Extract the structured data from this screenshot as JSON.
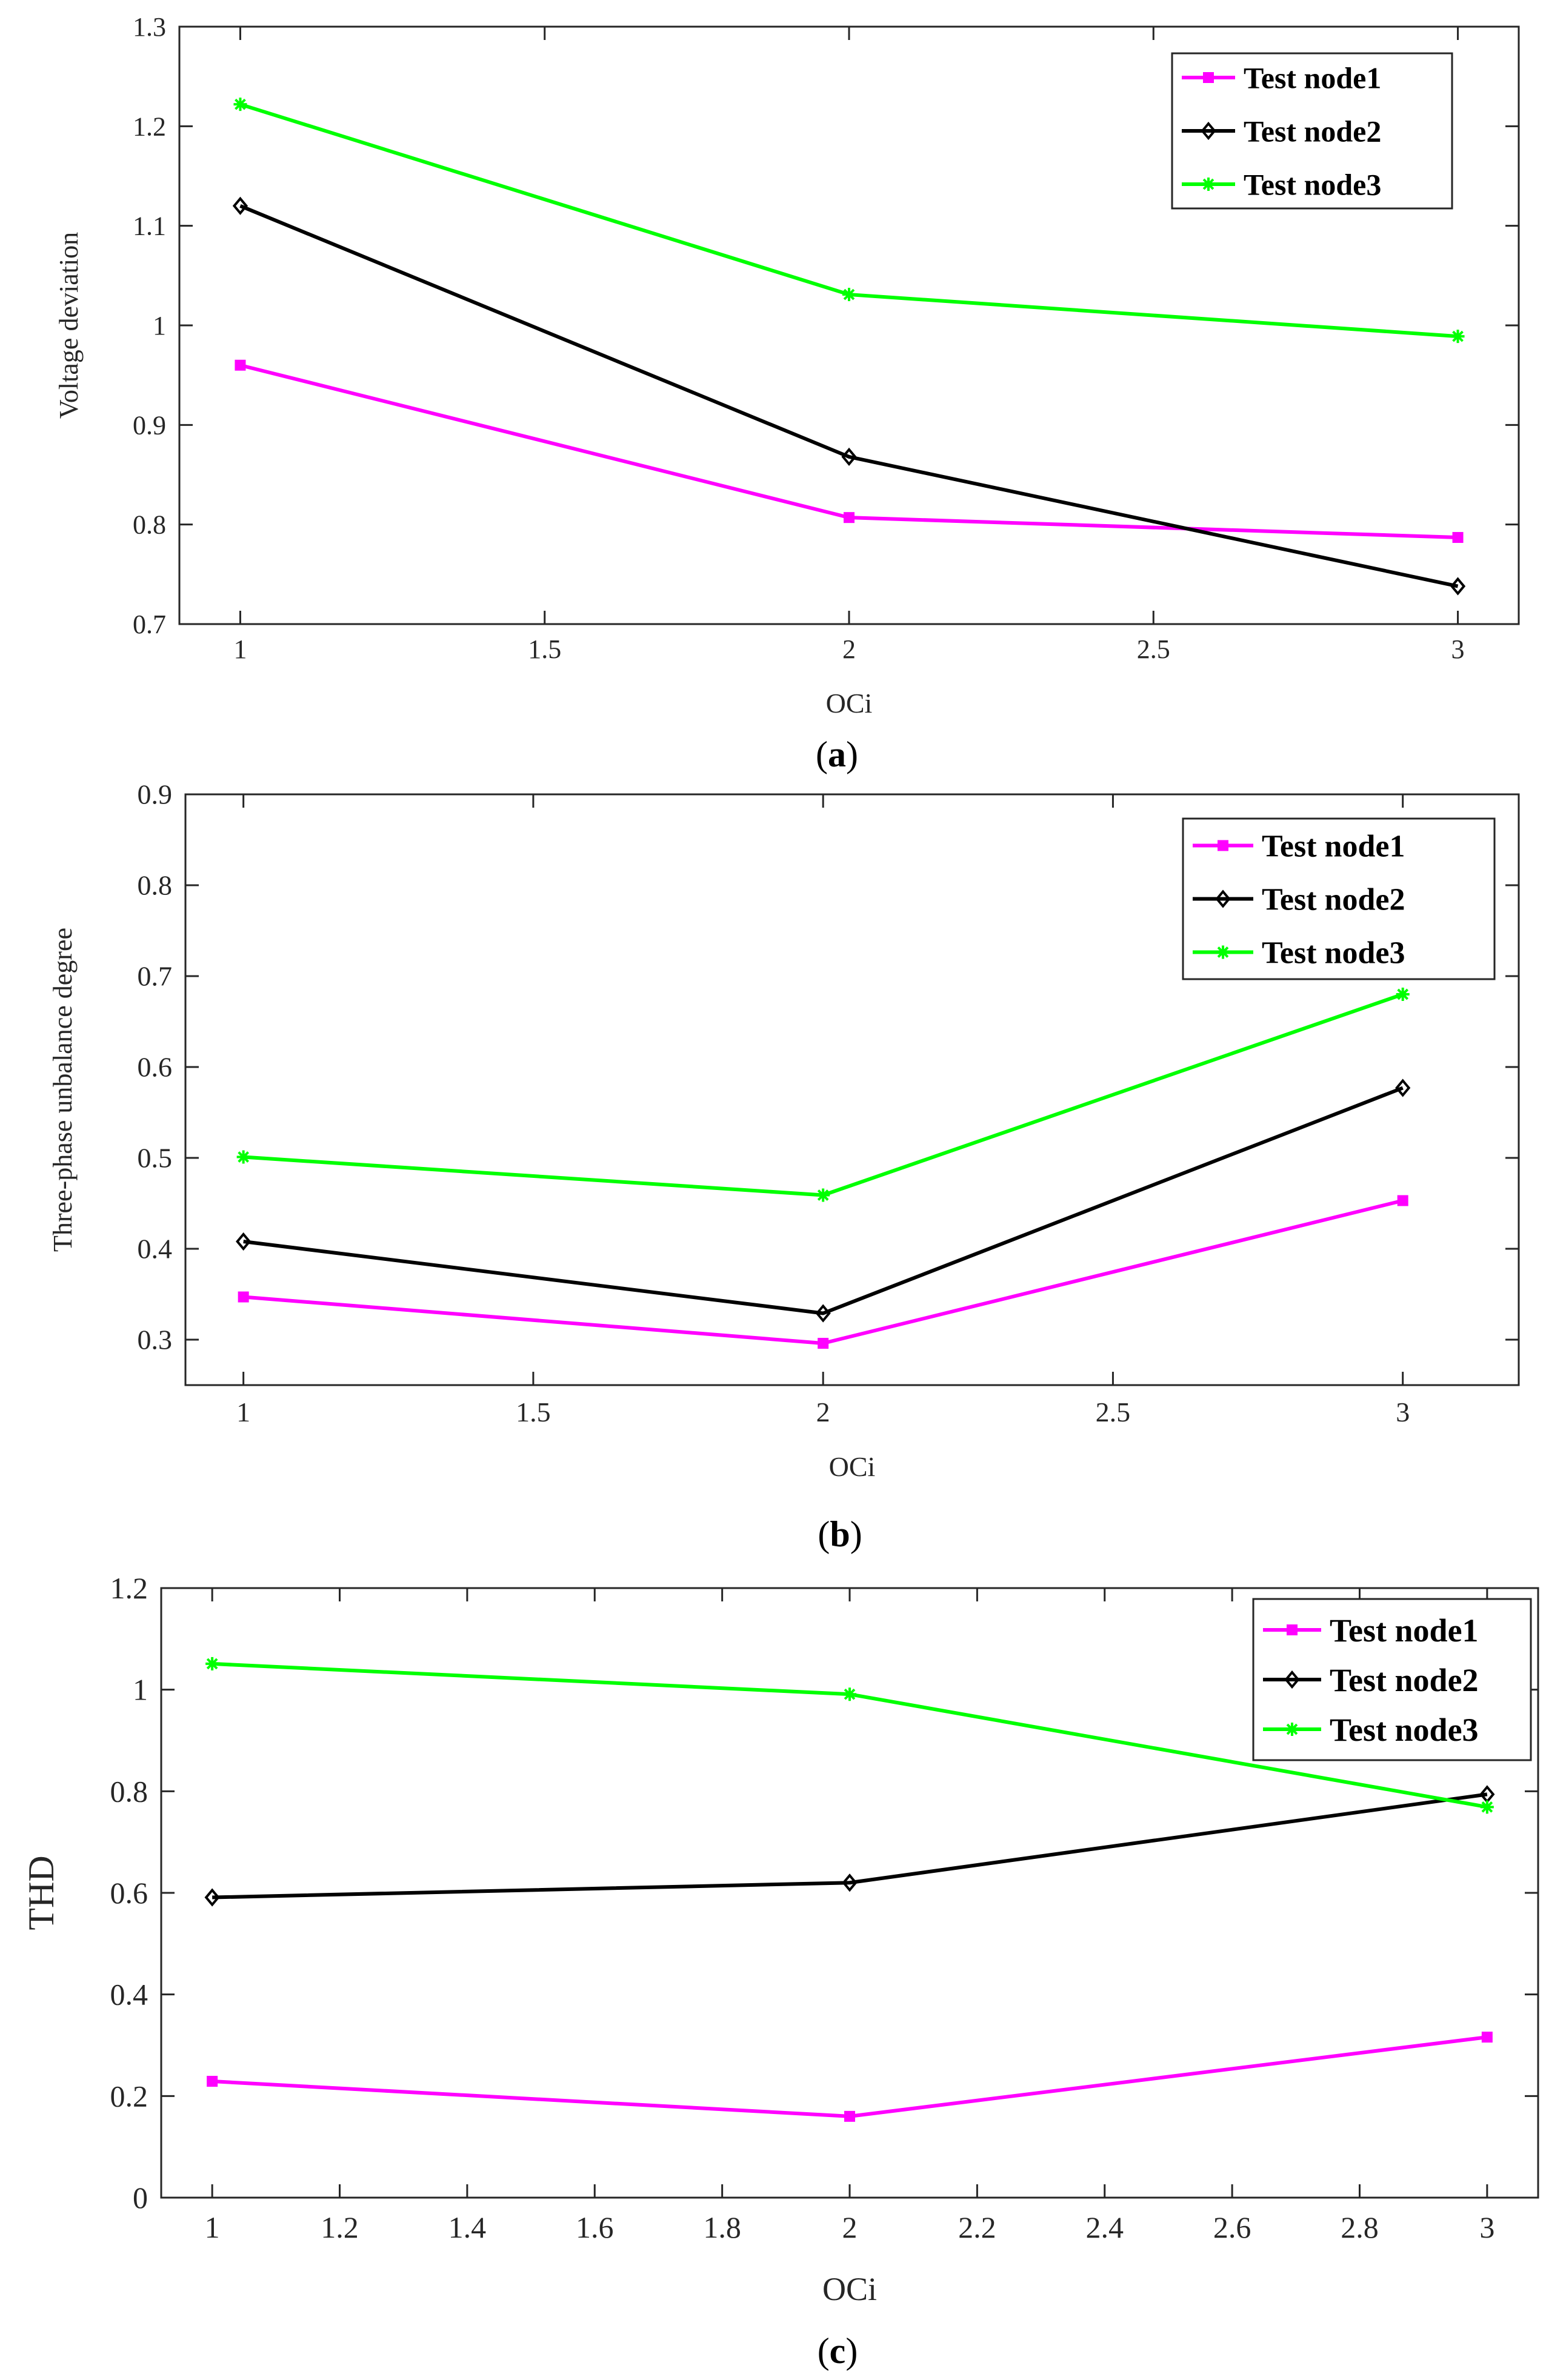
{
  "chart_data": [
    {
      "type": "line",
      "label": "a",
      "xlabel": "OCi",
      "ylabel": "Voltage deviation",
      "xlim": [
        0.9,
        3.1
      ],
      "ylim": [
        0.7,
        1.3
      ],
      "xticks": [
        1,
        1.5,
        2,
        2.5,
        3
      ],
      "yticks": [
        0.7,
        0.8,
        0.9,
        1,
        1.1,
        1.2,
        1.3
      ],
      "x": [
        1,
        2,
        3
      ],
      "legend_position": "top-right",
      "series": [
        {
          "name": "Test node1",
          "color": "#ff00ff",
          "marker": "square",
          "values": [
            0.96,
            0.807,
            0.787
          ]
        },
        {
          "name": "Test node2",
          "color": "#000000",
          "marker": "diamond",
          "values": [
            1.12,
            0.868,
            0.738
          ]
        },
        {
          "name": "Test node3",
          "color": "#00ff00",
          "marker": "star",
          "values": [
            1.222,
            1.031,
            0.989
          ]
        }
      ]
    },
    {
      "type": "line",
      "label": "b",
      "xlabel": "OCi",
      "ylabel": "Three-phase unbalance degree",
      "xlim": [
        0.9,
        3.2
      ],
      "ylim": [
        0.25,
        0.9
      ],
      "xticks": [
        1,
        1.5,
        2,
        2.5,
        3
      ],
      "yticks": [
        0.3,
        0.4,
        0.5,
        0.6,
        0.7,
        0.8,
        0.9
      ],
      "x": [
        1,
        2,
        3
      ],
      "legend_position": "top-right",
      "series": [
        {
          "name": "Test node1",
          "color": "#ff00ff",
          "marker": "square",
          "values": [
            0.347,
            0.296,
            0.453
          ]
        },
        {
          "name": "Test node2",
          "color": "#000000",
          "marker": "diamond",
          "values": [
            0.408,
            0.329,
            0.577
          ]
        },
        {
          "name": "Test node3",
          "color": "#00ff00",
          "marker": "star",
          "values": [
            0.501,
            0.459,
            0.68
          ]
        }
      ]
    },
    {
      "type": "line",
      "label": "c",
      "xlabel": "OCi",
      "ylabel": "THD",
      "xlim": [
        0.92,
        3.08
      ],
      "ylim": [
        0,
        1.2
      ],
      "xticks": [
        1,
        1.2,
        1.4,
        1.6,
        1.8,
        2,
        2.2,
        2.4,
        2.6,
        2.8,
        3
      ],
      "yticks": [
        0,
        0.2,
        0.4,
        0.6,
        0.8,
        1,
        1.2
      ],
      "x": [
        1,
        2,
        3
      ],
      "legend_position": "top-right",
      "series": [
        {
          "name": "Test node1",
          "color": "#ff00ff",
          "marker": "square",
          "values": [
            0.229,
            0.16,
            0.316
          ]
        },
        {
          "name": "Test node2",
          "color": "#000000",
          "marker": "diamond",
          "values": [
            0.591,
            0.62,
            0.794
          ]
        },
        {
          "name": "Test node3",
          "color": "#00ff00",
          "marker": "star",
          "values": [
            1.051,
            0.991,
            0.769
          ]
        }
      ]
    }
  ]
}
